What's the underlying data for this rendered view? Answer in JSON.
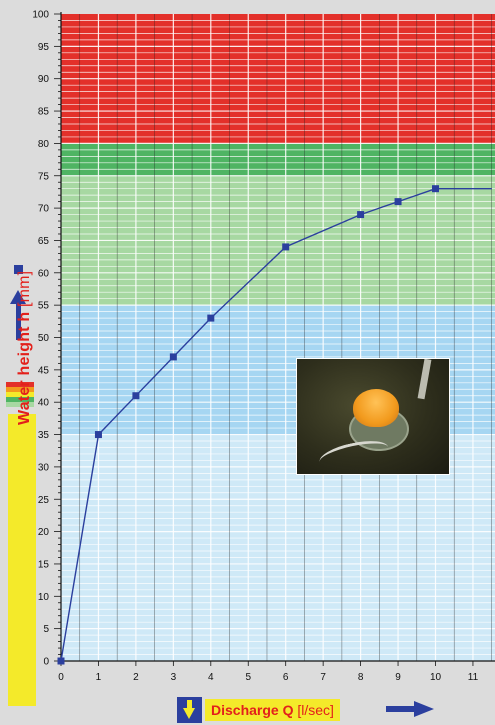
{
  "chart_data": {
    "type": "line",
    "x": [
      0,
      1,
      2,
      3,
      4,
      6,
      8,
      9,
      10,
      11.5
    ],
    "y": [
      0,
      35,
      41,
      47,
      53,
      64,
      69,
      71,
      73,
      73
    ],
    "marker_x": [
      0,
      1,
      2,
      3,
      4,
      6,
      8,
      9,
      10
    ],
    "xlim": [
      0,
      11.5
    ],
    "ylim": [
      0,
      100
    ],
    "x_ticks": [
      "0",
      "1",
      "2",
      "3",
      "4",
      "5",
      "6",
      "7",
      "8",
      "9",
      "10",
      "11"
    ],
    "y_ticks": [
      "0",
      "5",
      "10",
      "15",
      "20",
      "25",
      "30",
      "35",
      "40",
      "45",
      "50",
      "55",
      "60",
      "65",
      "70",
      "75",
      "80",
      "85",
      "90",
      "95",
      "100"
    ],
    "bands": [
      {
        "from": 0,
        "to": 35,
        "color": "#cfe9f7"
      },
      {
        "from": 35,
        "to": 55,
        "color": "#a6d6f2"
      },
      {
        "from": 55,
        "to": 75,
        "color": "#a7d8a2"
      },
      {
        "from": 75,
        "to": 80,
        "color": "#4fb463"
      },
      {
        "from": 80,
        "to": 100,
        "color": "#e3302a"
      }
    ],
    "series_color": "#2b3f9e",
    "grid": true,
    "xlabel_parts": {
      "main": "Discharge Q ",
      "unit": "[l/sec]"
    },
    "ylabel_parts": {
      "main": "Water height h ",
      "unit": "[mm]"
    },
    "legend_swatch_colors": [
      "#e3302a",
      "#f29a1d",
      "#f4ea2a",
      "#4fb463",
      "#a7d8a2"
    ],
    "accent_yellow": "#f4ea2a",
    "accent_red": "#e3201b"
  }
}
